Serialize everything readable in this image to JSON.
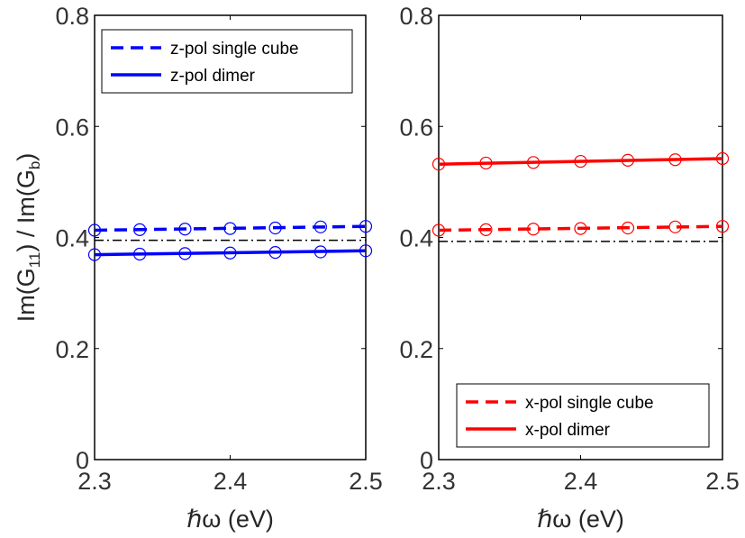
{
  "chart_data": [
    {
      "type": "line",
      "xlabel": "ℏω (eV)",
      "ylabel": "Im(G11) / Im(Gb)",
      "ylabel_parts": {
        "a": "Im(G",
        "a_sub": "11",
        "b": ") / Im(G",
        "b_sub": "b",
        "c": ")"
      },
      "xlim": [
        2.3,
        2.5
      ],
      "ylim": [
        0,
        0.8
      ],
      "xticks": [
        "2.3",
        "2.4",
        "2.5"
      ],
      "yticks": [
        "0",
        "0.2",
        "0.4",
        "0.6",
        "0.8"
      ],
      "grid": false,
      "legend_position": "top-left",
      "series": [
        {
          "name": "z-pol single cube",
          "color": "#0000ff",
          "style": "dashed",
          "x": [
            2.3,
            2.5
          ],
          "y": [
            0.413,
            0.42
          ]
        },
        {
          "name": "z-pol dimer",
          "color": "#0000ff",
          "style": "solid",
          "x": [
            2.3,
            2.5
          ],
          "y": [
            0.369,
            0.376
          ]
        }
      ],
      "markers": {
        "color": "#0000ff",
        "sets": [
          {
            "x": [
              2.3,
              2.3333,
              2.3667,
              2.4,
              2.4333,
              2.4667,
              2.5
            ],
            "y": [
              0.413,
              0.414,
              0.415,
              0.416,
              0.417,
              0.419,
              0.42
            ]
          },
          {
            "x": [
              2.3,
              2.3333,
              2.3667,
              2.4,
              2.4333,
              2.4667,
              2.5
            ],
            "y": [
              0.369,
              0.37,
              0.371,
              0.372,
              0.373,
              0.374,
              0.376
            ]
          }
        ]
      },
      "reference_line": {
        "y": 0.395,
        "color": "#000000",
        "style": "dashdot"
      }
    },
    {
      "type": "line",
      "xlabel": "ℏω (eV)",
      "xlim": [
        2.3,
        2.5
      ],
      "ylim": [
        0,
        0.8
      ],
      "xticks": [
        "2.3",
        "2.4",
        "2.5"
      ],
      "yticks": [
        "0",
        "0.2",
        "0.4",
        "0.6",
        "0.8"
      ],
      "grid": false,
      "legend_position": "bottom-right",
      "series": [
        {
          "name": "x-pol single cube",
          "color": "#ff0000",
          "style": "dashed",
          "x": [
            2.3,
            2.5
          ],
          "y": [
            0.413,
            0.42
          ]
        },
        {
          "name": "x-pol dimer",
          "color": "#ff0000",
          "style": "solid",
          "x": [
            2.3,
            2.5
          ],
          "y": [
            0.532,
            0.542
          ]
        }
      ],
      "markers": {
        "color": "#ff0000",
        "sets": [
          {
            "x": [
              2.3,
              2.3333,
              2.3667,
              2.4,
              2.4333,
              2.4667,
              2.5
            ],
            "y": [
              0.413,
              0.414,
              0.415,
              0.416,
              0.417,
              0.419,
              0.42
            ]
          },
          {
            "x": [
              2.3,
              2.3333,
              2.3667,
              2.4,
              2.4333,
              2.4667,
              2.5
            ],
            "y": [
              0.532,
              0.534,
              0.535,
              0.537,
              0.539,
              0.54,
              0.542
            ]
          }
        ]
      },
      "reference_line": {
        "y": 0.393,
        "color": "#000000",
        "style": "dashdot"
      }
    }
  ]
}
